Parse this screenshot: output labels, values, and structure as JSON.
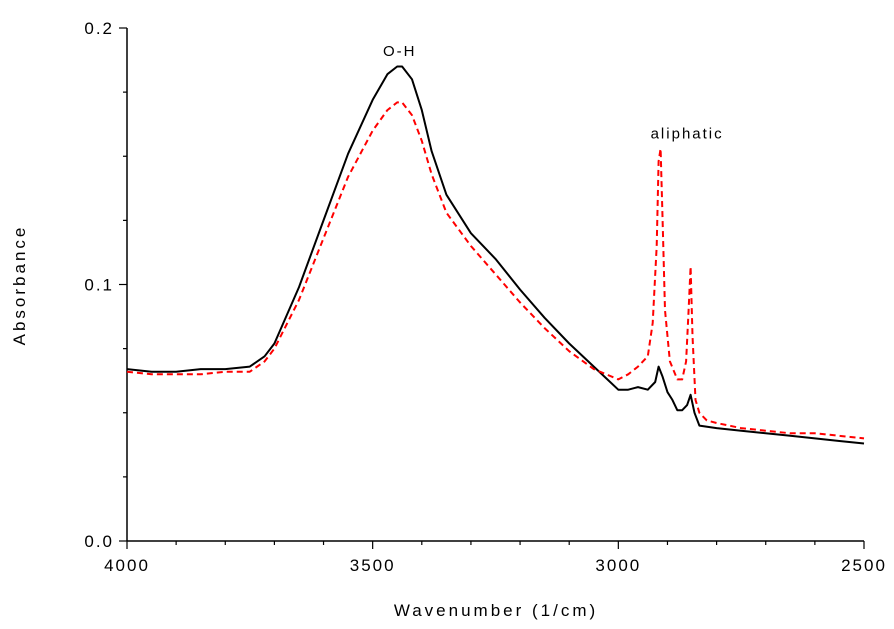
{
  "chart_data": {
    "type": "line",
    "xlabel": "Wavenumber (1/cm)",
    "ylabel": "Absorbance",
    "xlim": [
      4000,
      2500
    ],
    "ylim": [
      0.0,
      0.2
    ],
    "x_reversed": true,
    "xticks": [
      4000,
      3500,
      3000,
      2500
    ],
    "xtick_labels": [
      "4000",
      "3500",
      "3000",
      "2500"
    ],
    "yticks": [
      0.0,
      0.1,
      0.2
    ],
    "ytick_labels": [
      "0.0",
      "0.1",
      "0.2"
    ],
    "grid": false,
    "legend": "none",
    "annotations": [
      {
        "text": "O-H",
        "x": 3445,
        "y": 0.189
      },
      {
        "text": "aliphatic",
        "x": 2860,
        "y": 0.157
      }
    ],
    "series": [
      {
        "color": "#000000",
        "style": "solid",
        "x": [
          4000,
          3950,
          3900,
          3850,
          3800,
          3750,
          3720,
          3700,
          3650,
          3600,
          3550,
          3500,
          3470,
          3450,
          3440,
          3420,
          3400,
          3380,
          3350,
          3300,
          3250,
          3200,
          3150,
          3100,
          3050,
          3000,
          2980,
          2960,
          2940,
          2925,
          2918,
          2910,
          2900,
          2890,
          2880,
          2870,
          2860,
          2853,
          2845,
          2835,
          2800,
          2750,
          2700,
          2650,
          2600,
          2550,
          2500
        ],
        "y": [
          0.067,
          0.066,
          0.066,
          0.067,
          0.067,
          0.068,
          0.072,
          0.077,
          0.099,
          0.125,
          0.151,
          0.172,
          0.182,
          0.185,
          0.185,
          0.18,
          0.168,
          0.152,
          0.135,
          0.12,
          0.11,
          0.098,
          0.087,
          0.077,
          0.068,
          0.059,
          0.059,
          0.06,
          0.059,
          0.062,
          0.068,
          0.064,
          0.058,
          0.055,
          0.051,
          0.051,
          0.053,
          0.057,
          0.05,
          0.045,
          0.044,
          0.043,
          0.042,
          0.041,
          0.04,
          0.039,
          0.038
        ]
      },
      {
        "color": "#ff0000",
        "style": "dashed",
        "x": [
          4000,
          3950,
          3900,
          3850,
          3800,
          3750,
          3720,
          3700,
          3650,
          3600,
          3550,
          3500,
          3470,
          3450,
          3440,
          3420,
          3400,
          3380,
          3350,
          3300,
          3250,
          3200,
          3150,
          3100,
          3050,
          3000,
          2980,
          2960,
          2940,
          2930,
          2922,
          2918,
          2914,
          2910,
          2905,
          2895,
          2880,
          2870,
          2862,
          2857,
          2853,
          2849,
          2843,
          2835,
          2820,
          2800,
          2750,
          2700,
          2650,
          2600,
          2550,
          2500
        ],
        "y": [
          0.066,
          0.065,
          0.065,
          0.065,
          0.066,
          0.066,
          0.07,
          0.075,
          0.094,
          0.118,
          0.142,
          0.16,
          0.168,
          0.171,
          0.171,
          0.166,
          0.156,
          0.143,
          0.128,
          0.115,
          0.104,
          0.093,
          0.083,
          0.074,
          0.067,
          0.063,
          0.065,
          0.068,
          0.072,
          0.085,
          0.115,
          0.148,
          0.153,
          0.125,
          0.09,
          0.07,
          0.063,
          0.063,
          0.07,
          0.09,
          0.107,
          0.08,
          0.055,
          0.05,
          0.047,
          0.046,
          0.044,
          0.043,
          0.042,
          0.042,
          0.041,
          0.04
        ]
      }
    ]
  }
}
